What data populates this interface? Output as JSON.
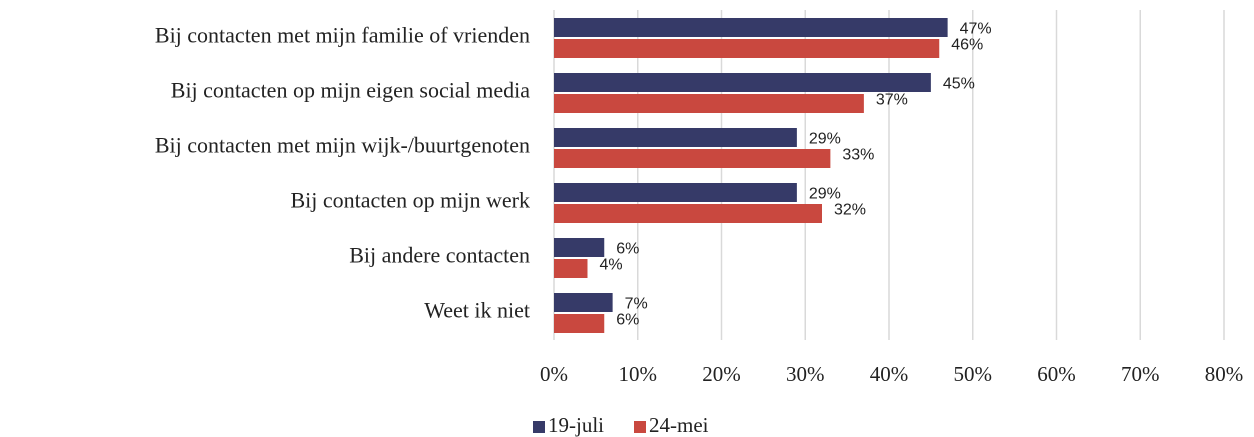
{
  "chart_data": {
    "type": "bar",
    "orientation": "horizontal",
    "categories": [
      "Bij contacten met mijn familie of vrienden",
      "Bij contacten op mijn eigen social media",
      "Bij contacten met mijn wijk-/buurtgenoten",
      "Bij contacten op mijn werk",
      "Bij andere contacten",
      "Weet ik niet"
    ],
    "series": [
      {
        "name": "19-juli",
        "color": "#363a68",
        "values": [
          47,
          45,
          29,
          29,
          6,
          7
        ],
        "value_labels": [
          "47%",
          "45%",
          "29%",
          "29%",
          "6%",
          "7%"
        ]
      },
      {
        "name": "24-mei",
        "color": "#c9483f",
        "values": [
          46,
          37,
          33,
          32,
          4,
          6
        ],
        "value_labels": [
          "46%",
          "37%",
          "33%",
          "32%",
          "4%",
          "6%"
        ]
      }
    ],
    "xlim": [
      0,
      80
    ],
    "xticks": [
      {
        "value": 0,
        "label": "0%"
      },
      {
        "value": 10,
        "label": "10%"
      },
      {
        "value": 20,
        "label": "20%"
      },
      {
        "value": 30,
        "label": "30%"
      },
      {
        "value": 40,
        "label": "40%"
      },
      {
        "value": 50,
        "label": "50%"
      },
      {
        "value": 60,
        "label": "60%"
      },
      {
        "value": 70,
        "label": "70%"
      },
      {
        "value": 80,
        "label": "80%"
      }
    ],
    "grid": true,
    "legend": "bottom"
  }
}
